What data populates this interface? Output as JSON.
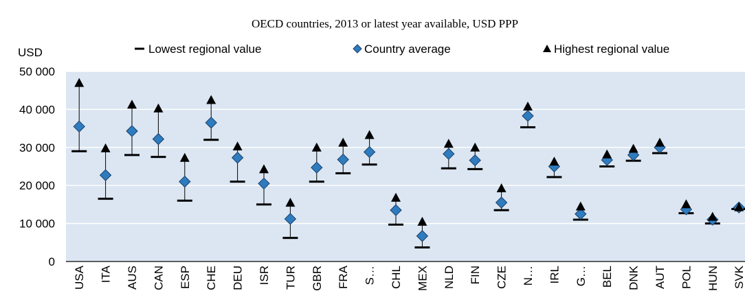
{
  "chart_data": {
    "type": "range",
    "title": "OECD countries, 2013 or latest year available, USD PPP",
    "y_label": "USD",
    "categories": [
      "USA",
      "ITA",
      "AUS",
      "CAN",
      "ESP",
      "CHE",
      "DEU",
      "ISR",
      "TUR",
      "GBR",
      "FRA",
      "S…",
      "CHL",
      "MEX",
      "NLD",
      "FIN",
      "CZE",
      "N…",
      "IRL",
      "G…",
      "BEL",
      "DNK",
      "AUT",
      "POL",
      "HUN",
      "SVK"
    ],
    "series": [
      {
        "name": "Lowest regional value",
        "color": "#000000",
        "values": [
          29000,
          16500,
          28000,
          27500,
          16000,
          32000,
          21000,
          15000,
          6200,
          21000,
          23200,
          25500,
          9700,
          3700,
          24500,
          24300,
          13500,
          35300,
          22200,
          11000,
          25000,
          26500,
          28500,
          12700,
          10000,
          13800
        ]
      },
      {
        "name": "Country average",
        "color": "#2e7bbf",
        "values": [
          35500,
          22700,
          34300,
          32200,
          21000,
          36500,
          27300,
          20500,
          11200,
          24700,
          26800,
          28800,
          13500,
          6700,
          28300,
          26600,
          15500,
          38300,
          25000,
          12500,
          26700,
          28000,
          30000,
          13700,
          11000,
          14200
        ]
      },
      {
        "name": "Highest regional value",
        "color": "#000000",
        "values": [
          47000,
          29800,
          41300,
          40300,
          27300,
          42500,
          30300,
          24300,
          15500,
          30000,
          31300,
          33300,
          16800,
          10500,
          31000,
          30000,
          19300,
          40800,
          26300,
          14500,
          28200,
          29700,
          31300,
          15100,
          11800,
          14300
        ]
      }
    ],
    "ylim": [
      0,
      50000
    ],
    "yticks": [
      0,
      {
        "value": 10000,
        "label": "10 000"
      },
      {
        "value": 20000,
        "label": "20 000"
      },
      {
        "value": 30000,
        "label": "30 000"
      },
      {
        "value": 40000,
        "label": "40 000"
      },
      {
        "value": 50000,
        "label": "50 000"
      }
    ],
    "grid": true,
    "plot_background": "#dbe6f2"
  }
}
